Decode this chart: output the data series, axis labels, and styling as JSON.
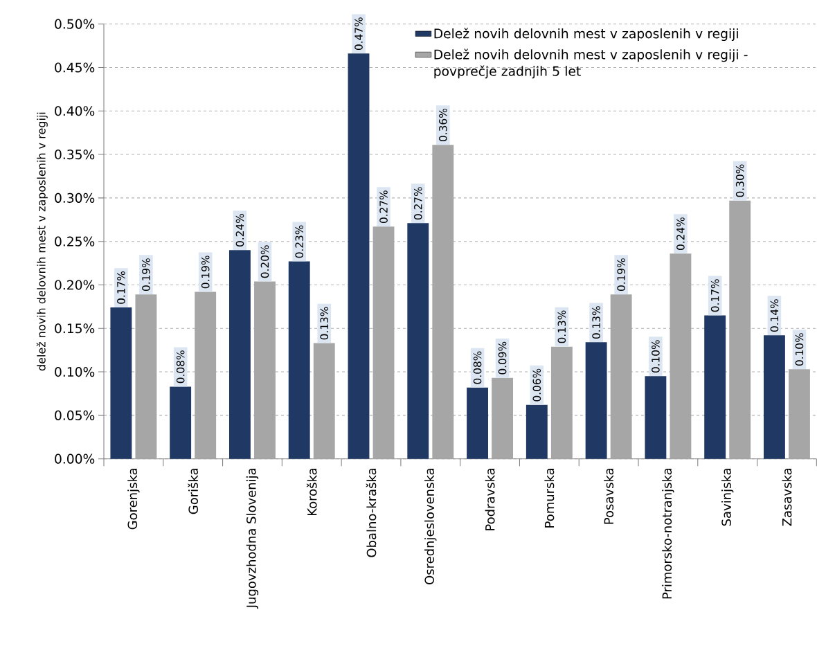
{
  "chart_data": {
    "type": "bar",
    "ylabel": "delež novih delovnih mest v zaposlenih v regiji",
    "categories": [
      "Gorenjska",
      "Goriška",
      "Jugovzhodna Slovenija",
      "Koroška",
      "Obalno-kraška",
      "Osrednjeslovenska",
      "Podravska",
      "Pomurska",
      "Posavska",
      "Primorsko-notranjska",
      "Savinjska",
      "Zasavska"
    ],
    "series": [
      {
        "name": "Delež novih delovnih mest v zaposlenih v regiji",
        "color": "#203864",
        "values": [
          0.174,
          0.083,
          0.24,
          0.227,
          0.466,
          0.271,
          0.082,
          0.062,
          0.134,
          0.095,
          0.165,
          0.142
        ],
        "value_labels": [
          "0.17%",
          "0.08%",
          "0.24%",
          "0.23%",
          "0.47%",
          "0.27%",
          "0.08%",
          "0.06%",
          "0.13%",
          "0.10%",
          "0.17%",
          "0.14%"
        ]
      },
      {
        "name": "Delež novih delovnih mest v zaposlenih v regiji - povprečje zadnjih 5 let",
        "color": "#a6a6a6",
        "values": [
          0.189,
          0.192,
          0.204,
          0.133,
          0.267,
          0.361,
          0.093,
          0.129,
          0.189,
          0.236,
          0.297,
          0.103
        ],
        "value_labels": [
          "0.19%",
          "0.19%",
          "0.20%",
          "0.13%",
          "0.27%",
          "0.36%",
          "0.09%",
          "0.13%",
          "0.19%",
          "0.24%",
          "0.30%",
          "0.10%"
        ]
      }
    ],
    "ylim": [
      0,
      0.5
    ],
    "yticks": [
      {
        "value": 0,
        "label": "0.00%"
      },
      {
        "value": 0.05,
        "label": "0.05%"
      },
      {
        "value": 0.1,
        "label": "0.10%"
      },
      {
        "value": 0.15,
        "label": "0.15%"
      },
      {
        "value": 0.2,
        "label": "0.20%"
      },
      {
        "value": 0.25,
        "label": "0.25%"
      },
      {
        "value": 0.3,
        "label": "0.30%"
      },
      {
        "value": 0.35,
        "label": "0.35%"
      },
      {
        "value": 0.4,
        "label": "0.40%"
      },
      {
        "value": 0.45,
        "label": "0.45%"
      },
      {
        "value": 0.5,
        "label": "0.50%"
      }
    ],
    "grid": "y",
    "legend": "top right"
  }
}
